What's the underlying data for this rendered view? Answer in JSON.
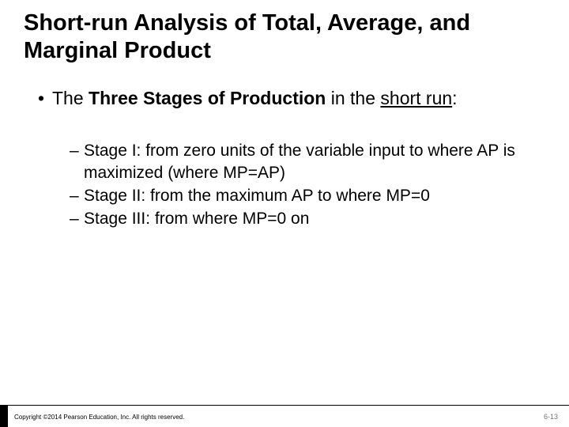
{
  "title_fontsize": 29,
  "body_fontsize": 23,
  "sub_fontsize": 21,
  "copyright_fontsize": 8,
  "pagenum_fontsize": 9,
  "text_color": "#000000",
  "pagenum_color": "#727272",
  "background_color": "#ffffff",
  "footer_bar_color": "#000000",
  "title": "Short-run Analysis of Total, Average, and Marginal Product",
  "main_bullet_prefix": "• ",
  "main_bullet_leading": "The ",
  "main_bullet_bold": "Three Stages of Production",
  "main_bullet_mid": " in the ",
  "main_bullet_underline": "short run",
  "main_bullet_trail": ":",
  "sub_dash": "– ",
  "sub1": "Stage I: from zero units of the variable input to where AP is maximized (where MP=AP)",
  "sub2": "Stage II: from the maximum AP to where MP=0",
  "sub3": "Stage III: from where MP=0 on",
  "copyright": "Copyright ©2014 Pearson Education, Inc. All rights reserved.",
  "page_number": "6-13"
}
